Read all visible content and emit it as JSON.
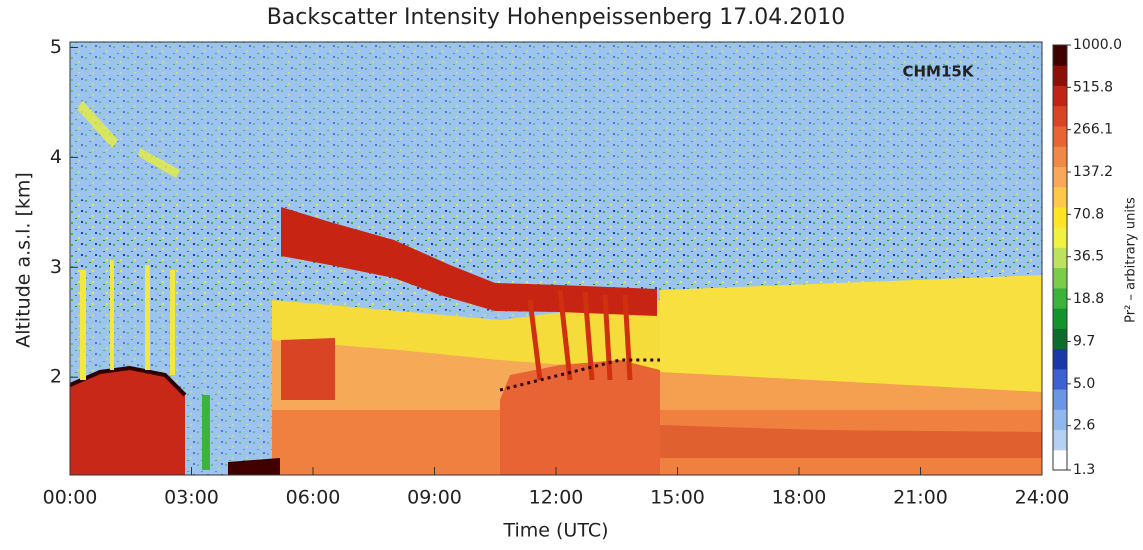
{
  "chart_data": {
    "type": "heatmap",
    "title": "Backscatter Intensity Hohenpeissenberg 17.04.2010",
    "xlabel": "Time (UTC)",
    "ylabel": "Altitude a.s.l. [km]",
    "annotation": "CHM15K",
    "xlim": [
      0,
      24
    ],
    "xticks": [
      {
        "value": 0,
        "label": "00:00"
      },
      {
        "value": 3,
        "label": "03:00"
      },
      {
        "value": 6,
        "label": "06:00"
      },
      {
        "value": 9,
        "label": "09:00"
      },
      {
        "value": 12,
        "label": "12:00"
      },
      {
        "value": 15,
        "label": "15:00"
      },
      {
        "value": 18,
        "label": "18:00"
      },
      {
        "value": 21,
        "label": "21:00"
      },
      {
        "value": 24,
        "label": "24:00"
      }
    ],
    "ylim": [
      1.11,
      5.05
    ],
    "yticks": [
      2,
      3,
      4,
      5
    ],
    "colorbar": {
      "label": "Pr² – arbitrary units",
      "log": true,
      "lim": [
        1.3,
        1000
      ],
      "ticks": [
        1.3,
        2.6,
        {
          "value": 5,
          "label": "5.0"
        },
        9.7,
        18.8,
        36.5,
        70.8,
        137.2,
        266.1,
        515.8,
        {
          "value": 1000,
          "label": "1000.0"
        }
      ],
      "colors": [
        "#ffffff",
        "#b4d0f2",
        "#90b8ee",
        "#6a96e4",
        "#3a62d2",
        "#1a38a8",
        "#0c6c2c",
        "#14922e",
        "#3cb43c",
        "#7ccc4c",
        "#bce260",
        "#f2f040",
        "#ffe428",
        "#ffc848",
        "#f8a858",
        "#f08848",
        "#e86434",
        "#d84424",
        "#c02414",
        "#8c1008",
        "#400000"
      ]
    }
  }
}
